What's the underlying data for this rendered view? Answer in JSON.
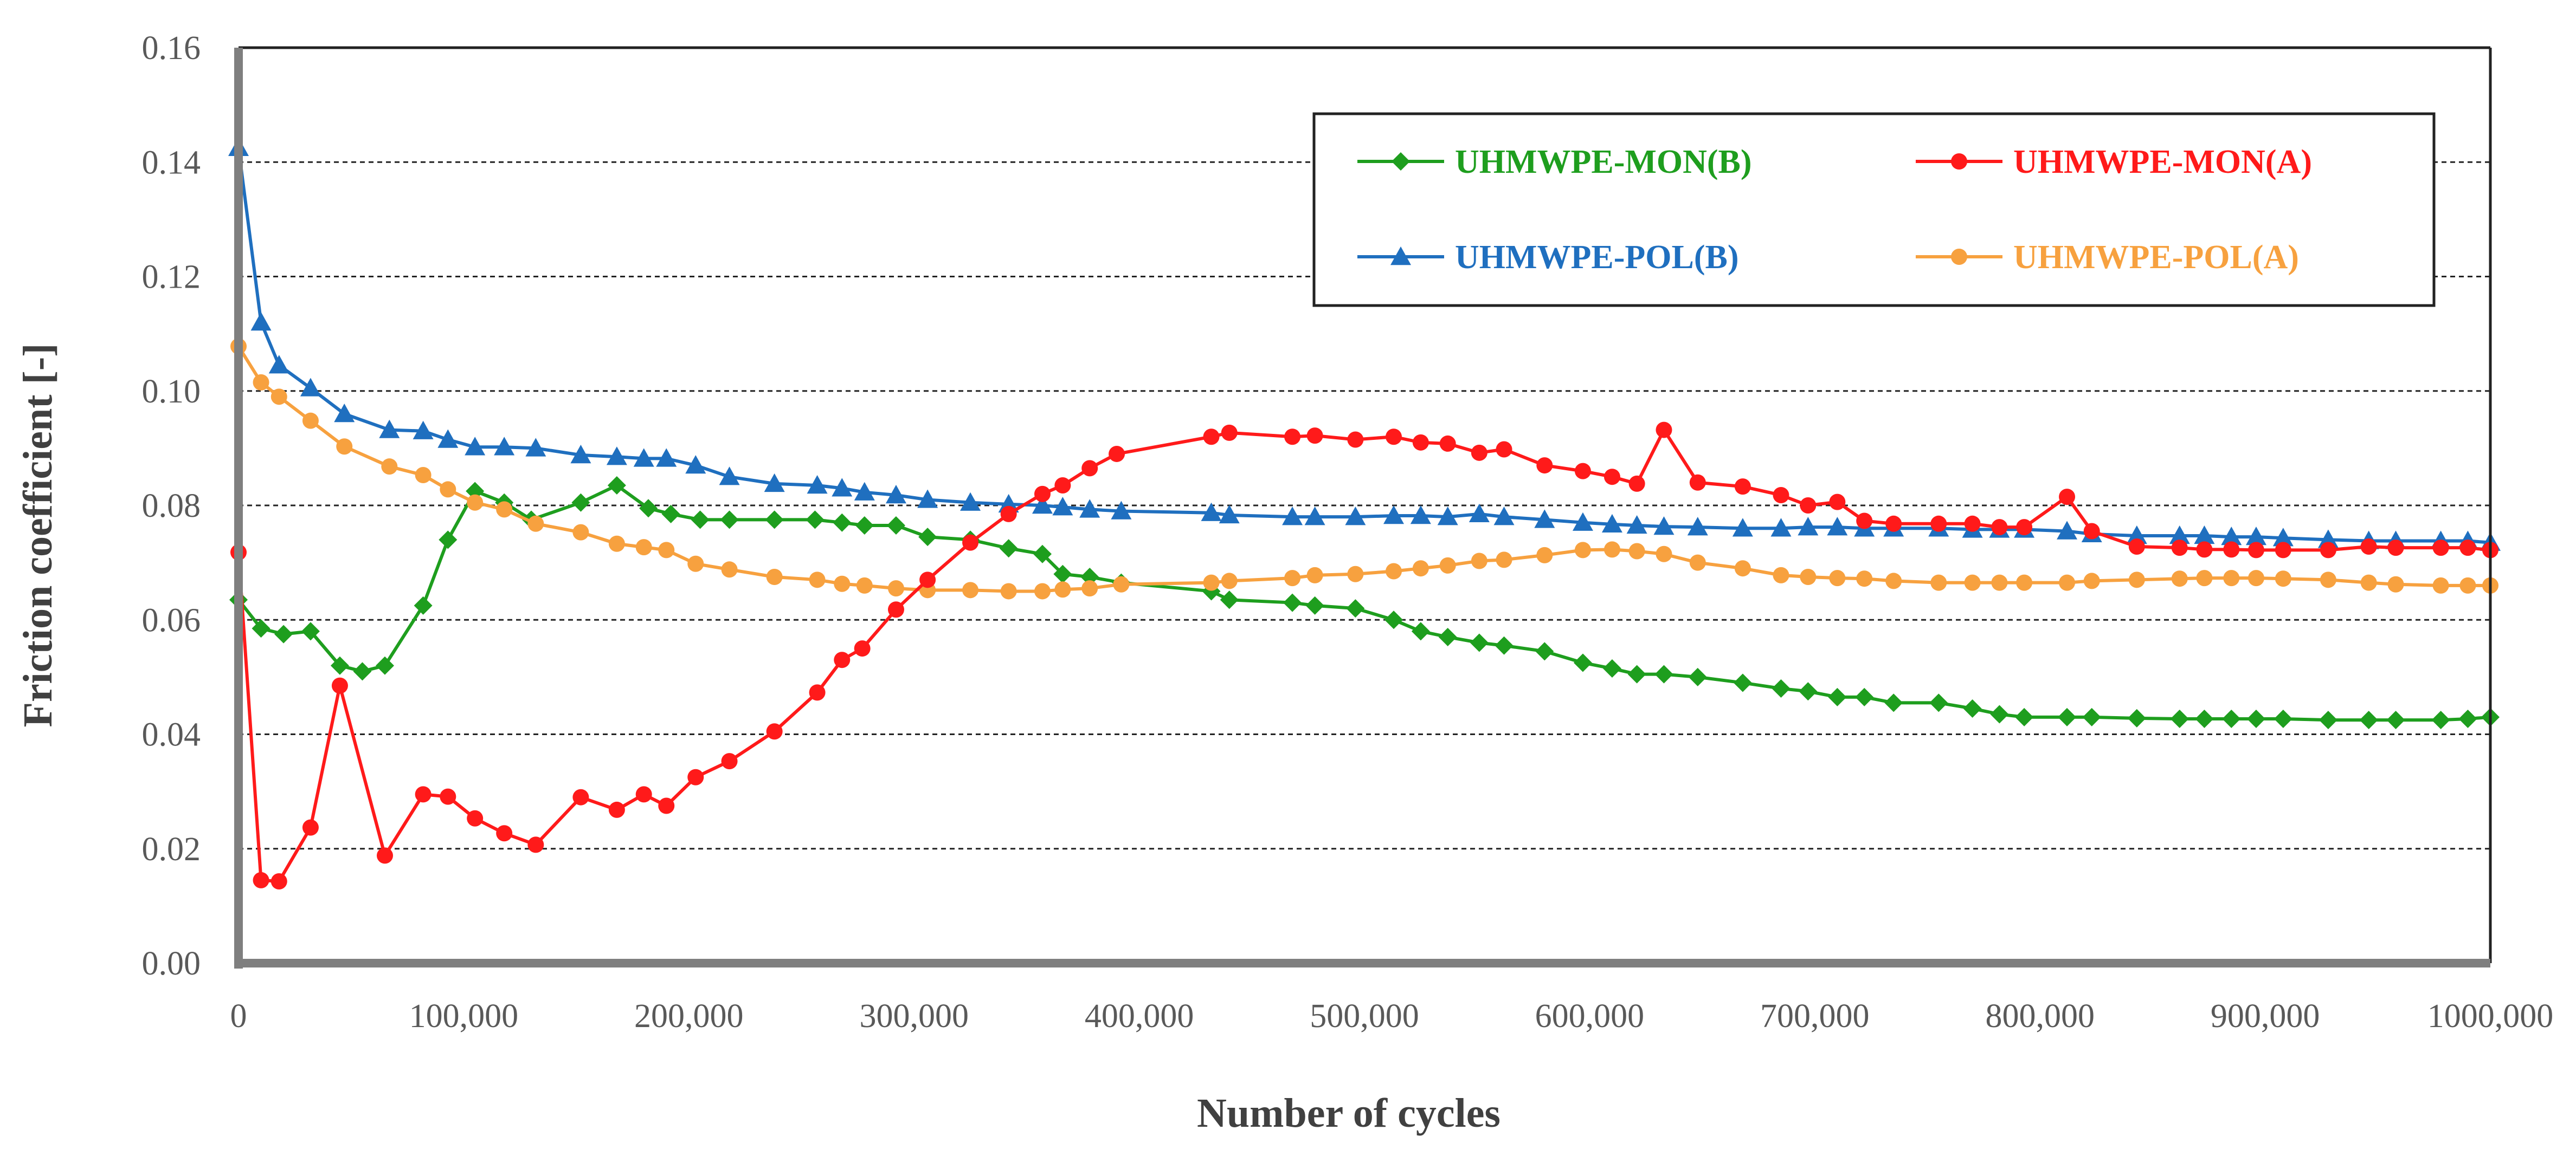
{
  "chart_data": {
    "type": "line",
    "title": "",
    "xlabel": "Number of cycles",
    "ylabel": "Friction coefficient [-]",
    "xlim": [
      0,
      1000000
    ],
    "ylim": [
      0,
      0.16
    ],
    "x_ticks": [
      0,
      100000,
      200000,
      300000,
      400000,
      500000,
      600000,
      700000,
      800000,
      900000,
      1000000
    ],
    "x_tick_labels": [
      "0",
      "100,000",
      "200,000",
      "300,000",
      "400,000",
      "500,000",
      "600,000",
      "700,000",
      "800,000",
      "900,000",
      "1000,000"
    ],
    "y_ticks": [
      0,
      0.02,
      0.04,
      0.06,
      0.08,
      0.1,
      0.12,
      0.14,
      0.16
    ],
    "y_tick_labels": [
      "0.00",
      "0.02",
      "0.04",
      "0.06",
      "0.08",
      "0.10",
      "0.12",
      "0.14",
      "0.16"
    ],
    "grid": "horizontal dashed",
    "legend_position": "top-right",
    "series": [
      {
        "name": "UHMWPE-MON(B)",
        "color": "#1e9e1e",
        "marker": "diamond",
        "x": [
          0,
          10000,
          20000,
          32000,
          45000,
          55000,
          65000,
          82000,
          93000,
          105000,
          118000,
          130000,
          152000,
          168000,
          182000,
          192000,
          205000,
          218000,
          238000,
          256000,
          268000,
          278000,
          292000,
          306000,
          325000,
          342000,
          357000,
          366000,
          378000,
          392000,
          432000,
          440000,
          468000,
          478000,
          496000,
          513000,
          525000,
          537000,
          551000,
          562000,
          580000,
          597000,
          610000,
          621000,
          633000,
          648000,
          668000,
          685000,
          697000,
          710000,
          722000,
          735000,
          755000,
          770000,
          782000,
          793000,
          812000,
          823000,
          843000,
          862000,
          873000,
          885000,
          896000,
          908000,
          928000,
          946000,
          958000,
          978000,
          990000,
          1000000
        ],
        "values": [
          0.0635,
          0.0585,
          0.0575,
          0.058,
          0.052,
          0.051,
          0.052,
          0.0625,
          0.074,
          0.0825,
          0.0805,
          0.0775,
          0.0805,
          0.0835,
          0.0795,
          0.0785,
          0.0775,
          0.0775,
          0.0775,
          0.0775,
          0.077,
          0.0765,
          0.0765,
          0.0745,
          0.074,
          0.0725,
          0.0715,
          0.068,
          0.0675,
          0.0665,
          0.065,
          0.0635,
          0.063,
          0.0625,
          0.062,
          0.06,
          0.058,
          0.057,
          0.056,
          0.0555,
          0.0545,
          0.0525,
          0.0515,
          0.0505,
          0.0505,
          0.05,
          0.049,
          0.048,
          0.0475,
          0.0465,
          0.0465,
          0.0455,
          0.0455,
          0.0445,
          0.0435,
          0.043,
          0.043,
          0.043,
          0.0428,
          0.0427,
          0.0427,
          0.0427,
          0.0427,
          0.0427,
          0.0425,
          0.0425,
          0.0425,
          0.0425,
          0.0427,
          0.043
        ]
      },
      {
        "name": "UHMWPE-MON(A)",
        "color": "#ff1a1a",
        "marker": "circle",
        "x": [
          0,
          10000,
          18000,
          32000,
          45000,
          65000,
          82000,
          93000,
          105000,
          118000,
          132000,
          152000,
          168000,
          180000,
          190000,
          203000,
          218000,
          238000,
          257000,
          268000,
          277000,
          292000,
          306000,
          325000,
          342000,
          357000,
          366000,
          378000,
          390000,
          432000,
          440000,
          468000,
          478000,
          496000,
          513000,
          525000,
          537000,
          551000,
          562000,
          580000,
          597000,
          610000,
          621000,
          633000,
          648000,
          668000,
          685000,
          697000,
          710000,
          722000,
          735000,
          755000,
          770000,
          782000,
          793000,
          812000,
          823000,
          843000,
          862000,
          873000,
          885000,
          896000,
          908000,
          928000,
          946000,
          958000,
          978000,
          990000,
          1000000
        ],
        "values": [
          0.0718,
          0.0145,
          0.0143,
          0.0237,
          0.0485,
          0.0188,
          0.0295,
          0.0291,
          0.0253,
          0.0227,
          0.0207,
          0.029,
          0.0268,
          0.0295,
          0.0275,
          0.0325,
          0.0353,
          0.0405,
          0.0473,
          0.053,
          0.055,
          0.0618,
          0.067,
          0.0735,
          0.0785,
          0.082,
          0.0835,
          0.0865,
          0.089,
          0.092,
          0.0927,
          0.092,
          0.0922,
          0.0915,
          0.092,
          0.091,
          0.0908,
          0.0892,
          0.0898,
          0.087,
          0.086,
          0.085,
          0.0838,
          0.0932,
          0.084,
          0.0833,
          0.0818,
          0.08,
          0.0806,
          0.0773,
          0.0768,
          0.0768,
          0.0768,
          0.0762,
          0.0762,
          0.0815,
          0.0755,
          0.0728,
          0.0726,
          0.0723,
          0.0723,
          0.0722,
          0.0722,
          0.0722,
          0.0728,
          0.0726,
          0.0726,
          0.0726,
          0.0722
        ]
      },
      {
        "name": "UHMWPE-POL(B)",
        "color": "#1f6fbf",
        "marker": "triangle",
        "x": [
          0,
          10000,
          18000,
          32000,
          47000,
          67000,
          82000,
          93000,
          105000,
          118000,
          132000,
          152000,
          168000,
          180000,
          190000,
          203000,
          218000,
          238000,
          257000,
          268000,
          278000,
          292000,
          306000,
          325000,
          342000,
          357000,
          366000,
          378000,
          392000,
          432000,
          440000,
          468000,
          478000,
          496000,
          513000,
          525000,
          537000,
          551000,
          562000,
          580000,
          597000,
          610000,
          621000,
          633000,
          648000,
          668000,
          685000,
          697000,
          710000,
          722000,
          735000,
          755000,
          770000,
          782000,
          793000,
          812000,
          823000,
          843000,
          862000,
          873000,
          885000,
          896000,
          908000,
          928000,
          946000,
          958000,
          978000,
          990000,
          1000000
        ],
        "values": [
          0.1425,
          0.112,
          0.1045,
          0.1005,
          0.096,
          0.0932,
          0.093,
          0.0915,
          0.0902,
          0.0902,
          0.09,
          0.0888,
          0.0885,
          0.0882,
          0.0882,
          0.087,
          0.085,
          0.0838,
          0.0835,
          0.083,
          0.0823,
          0.0818,
          0.081,
          0.0805,
          0.0802,
          0.08,
          0.0797,
          0.0793,
          0.079,
          0.0787,
          0.0783,
          0.078,
          0.078,
          0.078,
          0.0782,
          0.0782,
          0.078,
          0.0785,
          0.078,
          0.0775,
          0.077,
          0.0767,
          0.0765,
          0.0763,
          0.0762,
          0.076,
          0.076,
          0.0762,
          0.0762,
          0.076,
          0.076,
          0.076,
          0.0758,
          0.0758,
          0.0758,
          0.0755,
          0.075,
          0.0747,
          0.0747,
          0.0747,
          0.0745,
          0.0745,
          0.0743,
          0.074,
          0.0738,
          0.0738,
          0.0738,
          0.0738,
          0.0735
        ]
      },
      {
        "name": "UHMWPE-POL(A)",
        "color": "#f7a13f",
        "marker": "circle",
        "x": [
          0,
          10000,
          18000,
          32000,
          47000,
          67000,
          82000,
          93000,
          105000,
          118000,
          132000,
          152000,
          168000,
          180000,
          190000,
          203000,
          218000,
          238000,
          257000,
          268000,
          278000,
          292000,
          306000,
          325000,
          342000,
          357000,
          366000,
          378000,
          392000,
          432000,
          440000,
          468000,
          478000,
          496000,
          513000,
          525000,
          537000,
          551000,
          562000,
          580000,
          597000,
          610000,
          621000,
          633000,
          648000,
          668000,
          685000,
          697000,
          710000,
          722000,
          735000,
          755000,
          770000,
          782000,
          793000,
          812000,
          823000,
          843000,
          862000,
          873000,
          885000,
          896000,
          908000,
          928000,
          946000,
          958000,
          978000,
          990000,
          1000000
        ],
        "values": [
          0.1078,
          0.1015,
          0.099,
          0.0948,
          0.0903,
          0.0868,
          0.0853,
          0.0828,
          0.0805,
          0.0793,
          0.0768,
          0.0753,
          0.0733,
          0.0727,
          0.0722,
          0.0698,
          0.0688,
          0.0675,
          0.067,
          0.0663,
          0.066,
          0.0655,
          0.0652,
          0.0652,
          0.065,
          0.065,
          0.0653,
          0.0655,
          0.0662,
          0.0665,
          0.0668,
          0.0673,
          0.0678,
          0.068,
          0.0685,
          0.069,
          0.0695,
          0.0703,
          0.0705,
          0.0713,
          0.0722,
          0.0723,
          0.072,
          0.0715,
          0.07,
          0.069,
          0.0678,
          0.0675,
          0.0673,
          0.0672,
          0.0668,
          0.0665,
          0.0665,
          0.0665,
          0.0665,
          0.0665,
          0.0668,
          0.067,
          0.0672,
          0.0673,
          0.0673,
          0.0673,
          0.0672,
          0.067,
          0.0665,
          0.0662,
          0.066,
          0.066,
          0.066
        ]
      }
    ]
  }
}
